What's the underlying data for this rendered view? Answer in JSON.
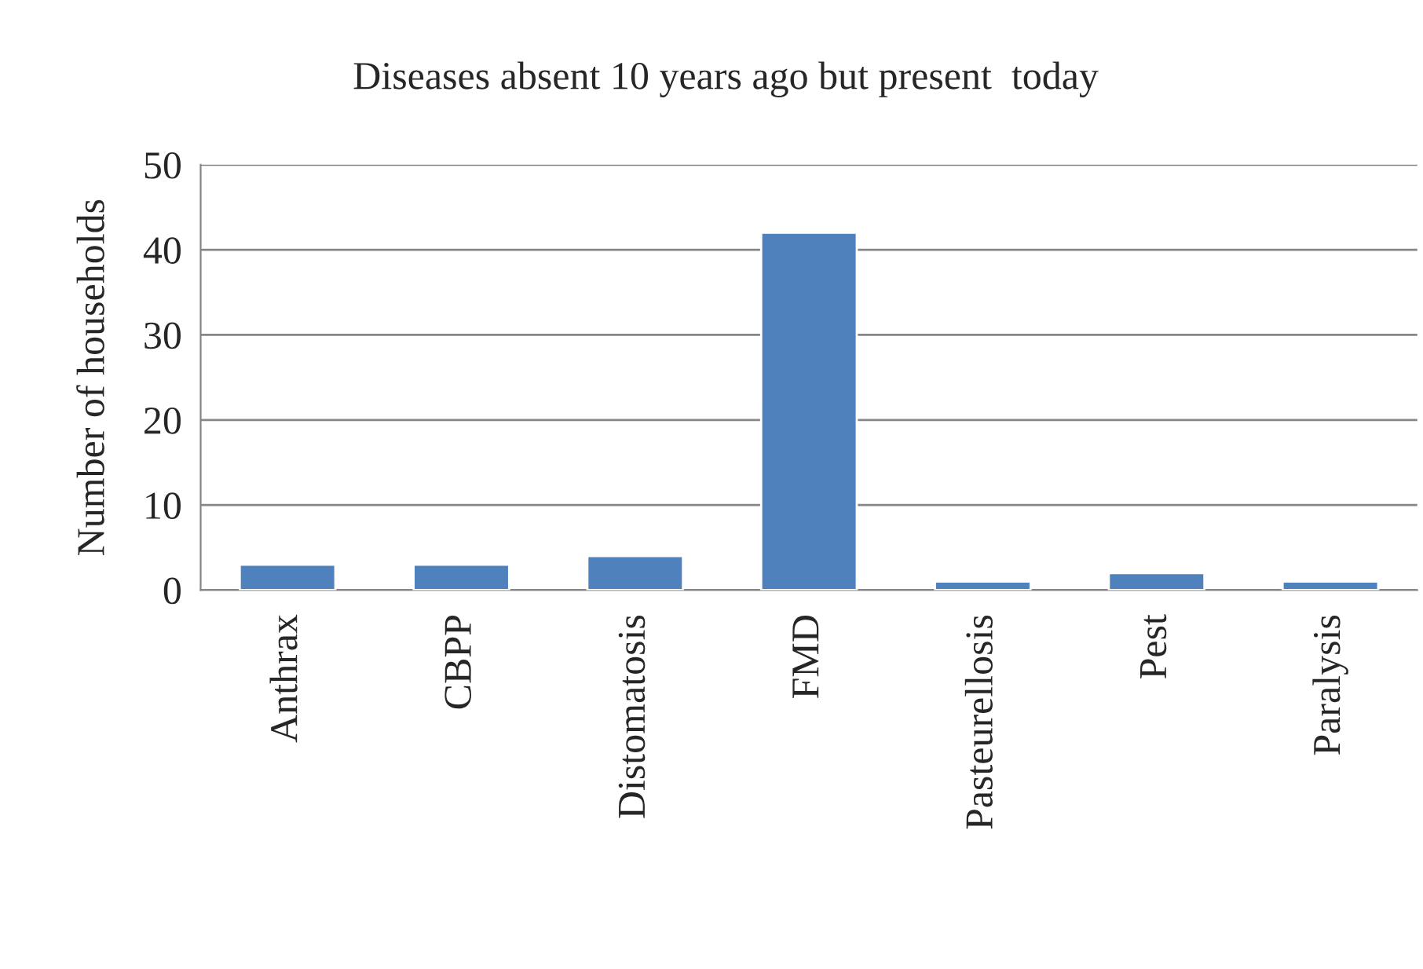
{
  "chart_data": {
    "type": "bar",
    "title": "Diseases absent 10 years ago but present  today",
    "ylabel": "Number of households",
    "categories": [
      "Anthrax",
      "CBPP",
      "Distomatosis",
      "FMD",
      "Pasteurellosis",
      "Pest",
      "Paralysis"
    ],
    "values": [
      3,
      3,
      4,
      42,
      1,
      2,
      1
    ],
    "color": "#4f81bd",
    "ylim": [
      0,
      50
    ],
    "yticks": [
      0,
      10,
      20,
      30,
      40,
      50
    ],
    "grid": "y",
    "legend": false
  }
}
